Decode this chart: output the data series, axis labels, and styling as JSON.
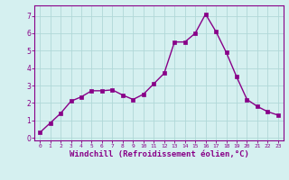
{
  "x": [
    0,
    1,
    2,
    3,
    4,
    5,
    6,
    7,
    8,
    9,
    10,
    11,
    12,
    13,
    14,
    15,
    16,
    17,
    18,
    19,
    20,
    21,
    22,
    23
  ],
  "y": [
    0.3,
    0.85,
    1.4,
    2.1,
    2.35,
    2.7,
    2.7,
    2.75,
    2.45,
    2.2,
    2.5,
    3.1,
    3.7,
    5.5,
    5.5,
    6.0,
    7.1,
    6.1,
    4.9,
    3.5,
    2.2,
    1.8,
    1.5,
    1.3
  ],
  "line_color": "#880088",
  "marker": "s",
  "markersize": 2.2,
  "linewidth": 1.0,
  "xlabel": "Windchill (Refroidissement éolien,°C)",
  "xlabel_fontsize": 6.5,
  "ytick_labels": [
    "0",
    "1",
    "2",
    "3",
    "4",
    "5",
    "6",
    "7"
  ],
  "ytick_vals": [
    0,
    1,
    2,
    3,
    4,
    5,
    6,
    7
  ],
  "xlim": [
    -0.5,
    23.5
  ],
  "ylim": [
    -0.15,
    7.6
  ],
  "bg_color": "#d5f0f0",
  "grid_color": "#b0d8d8",
  "tick_color": "#880088",
  "label_color": "#880088",
  "border_color": "#880088",
  "border_bottom_color": "#550055"
}
